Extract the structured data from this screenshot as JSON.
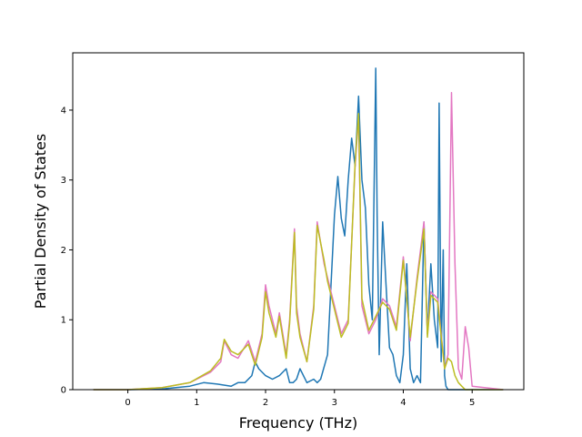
{
  "chart_data": {
    "type": "line",
    "title": "",
    "xlabel": "Frequency (THz)",
    "ylabel": "Partial Density of States",
    "xlim": [
      -0.8,
      5.75
    ],
    "ylim": [
      0,
      4.82
    ],
    "xticks": [
      0,
      1,
      2,
      3,
      4,
      5
    ],
    "yticks": [
      0,
      1,
      2,
      3,
      4
    ],
    "grid": false,
    "legend": "none",
    "series": [
      {
        "color": "#1f77b4",
        "x": [
          -0.5,
          0.0,
          0.5,
          0.9,
          1.1,
          1.3,
          1.5,
          1.6,
          1.7,
          1.8,
          1.85,
          1.9,
          2.0,
          2.1,
          2.2,
          2.3,
          2.35,
          2.4,
          2.45,
          2.5,
          2.6,
          2.7,
          2.75,
          2.8,
          2.9,
          3.0,
          3.05,
          3.1,
          3.15,
          3.2,
          3.25,
          3.3,
          3.35,
          3.4,
          3.45,
          3.5,
          3.55,
          3.6,
          3.62,
          3.65,
          3.7,
          3.75,
          3.8,
          3.85,
          3.9,
          3.95,
          4.0,
          4.05,
          4.1,
          4.15,
          4.2,
          4.25,
          4.3,
          4.35,
          4.4,
          4.45,
          4.5,
          4.52,
          4.55,
          4.58,
          4.6,
          4.62,
          4.65,
          4.7,
          4.8,
          5.0,
          5.45
        ],
        "y": [
          0,
          0,
          0.01,
          0.05,
          0.1,
          0.08,
          0.05,
          0.1,
          0.1,
          0.2,
          0.4,
          0.3,
          0.2,
          0.15,
          0.2,
          0.3,
          0.1,
          0.1,
          0.15,
          0.3,
          0.1,
          0.15,
          0.1,
          0.15,
          0.5,
          2.5,
          3.05,
          2.45,
          2.2,
          3.0,
          3.6,
          3.2,
          4.2,
          3.0,
          2.6,
          1.5,
          1.0,
          4.6,
          2.5,
          0.5,
          2.4,
          1.5,
          0.6,
          0.5,
          0.2,
          0.1,
          0.5,
          1.8,
          0.3,
          0.1,
          0.2,
          0.1,
          2.4,
          0.8,
          1.8,
          1.0,
          0.6,
          4.1,
          0.4,
          2.0,
          0.2,
          0.05,
          0,
          0,
          0,
          0,
          0
        ]
      },
      {
        "color": "#e377c2",
        "x": [
          -0.5,
          0.0,
          0.5,
          0.9,
          1.2,
          1.35,
          1.4,
          1.5,
          1.6,
          1.75,
          1.85,
          1.95,
          2.0,
          2.05,
          2.15,
          2.2,
          2.3,
          2.35,
          2.42,
          2.45,
          2.5,
          2.6,
          2.7,
          2.75,
          2.85,
          2.9,
          3.0,
          3.1,
          3.2,
          3.3,
          3.35,
          3.4,
          3.5,
          3.6,
          3.7,
          3.8,
          3.9,
          4.0,
          4.1,
          4.2,
          4.3,
          4.35,
          4.4,
          4.5,
          4.6,
          4.65,
          4.7,
          4.75,
          4.8,
          4.85,
          4.9,
          4.95,
          5.0,
          5.45
        ],
        "y": [
          0,
          0,
          0.03,
          0.1,
          0.25,
          0.4,
          0.7,
          0.5,
          0.45,
          0.7,
          0.4,
          0.8,
          1.5,
          1.2,
          0.8,
          1.1,
          0.5,
          1.0,
          2.3,
          1.2,
          0.8,
          0.4,
          1.2,
          2.4,
          1.8,
          1.6,
          1.2,
          0.8,
          1.0,
          3.2,
          3.9,
          1.2,
          0.8,
          1.0,
          1.3,
          1.2,
          0.9,
          1.9,
          0.7,
          1.6,
          2.4,
          0.8,
          1.4,
          1.3,
          0.3,
          0.5,
          4.25,
          1.8,
          0.3,
          0.15,
          0.9,
          0.6,
          0.05,
          0
        ]
      },
      {
        "color": "#bcbd22",
        "x": [
          -0.5,
          0.0,
          0.5,
          0.9,
          1.2,
          1.35,
          1.4,
          1.5,
          1.6,
          1.75,
          1.85,
          1.95,
          2.0,
          2.05,
          2.15,
          2.2,
          2.3,
          2.35,
          2.42,
          2.45,
          2.5,
          2.6,
          2.7,
          2.75,
          2.85,
          2.9,
          3.0,
          3.1,
          3.2,
          3.3,
          3.35,
          3.4,
          3.5,
          3.6,
          3.7,
          3.8,
          3.9,
          4.0,
          4.1,
          4.2,
          4.3,
          4.35,
          4.4,
          4.5,
          4.6,
          4.65,
          4.7,
          4.75,
          4.8,
          4.85,
          4.9,
          4.95,
          5.0,
          5.45
        ],
        "y": [
          0,
          0,
          0.03,
          0.1,
          0.27,
          0.45,
          0.72,
          0.55,
          0.5,
          0.65,
          0.35,
          0.75,
          1.4,
          1.1,
          0.75,
          1.05,
          0.45,
          0.95,
          2.25,
          1.1,
          0.75,
          0.4,
          1.15,
          2.35,
          1.85,
          1.55,
          1.15,
          0.75,
          0.95,
          3.25,
          3.95,
          1.3,
          0.85,
          1.05,
          1.25,
          1.15,
          0.85,
          1.85,
          0.75,
          1.55,
          2.3,
          0.75,
          1.35,
          1.25,
          0.3,
          0.45,
          0.4,
          0.2,
          0.1,
          0.05,
          0,
          0,
          0,
          0
        ]
      }
    ]
  }
}
